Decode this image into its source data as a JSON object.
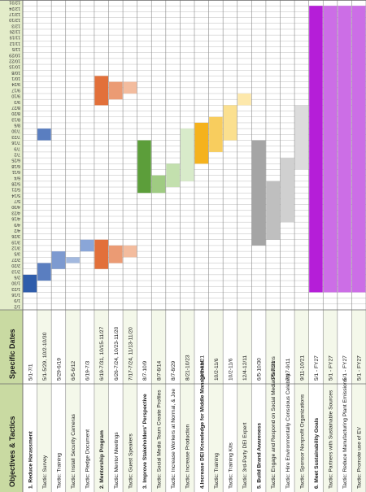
{
  "chart_data": {
    "type": "gantt",
    "orientation": "rotated-90-ccw",
    "headers": {
      "col1": "Objectives & Tactics",
      "col2": "Specific Dates"
    },
    "timeline_labels": [
      "1/2",
      "1/9",
      "1/16",
      "1/23",
      "1/30",
      "2/6",
      "2/13",
      "2/20",
      "2/27",
      "3/5",
      "3/12",
      "3/19",
      "3/26",
      "4/2",
      "4/9",
      "4/16",
      "4/23",
      "4/30",
      "5/7",
      "5/14",
      "5/21",
      "5/28",
      "6/4",
      "6/11",
      "6/18",
      "6/25",
      "7/2",
      "7/9",
      "7/16",
      "7/23",
      "7/30",
      "8/6",
      "8/13",
      "8/20",
      "8/27",
      "9/3",
      "9/10",
      "9/17",
      "9/24",
      "10/1",
      "10/8",
      "10/15",
      "10/22",
      "10/29",
      "11/5",
      "11/12",
      "11/19",
      "11/26",
      "12/3",
      "12/10",
      "12/17",
      "12/24",
      "12/31"
    ],
    "rows": [
      {
        "name": "1. Reduce Harassment",
        "dates": "5/1-7/1",
        "bold": true,
        "color": "#2f5dab",
        "bars": [
          {
            "start": 3,
            "end": 6
          }
        ]
      },
      {
        "name": "Tactic: Survey",
        "dates": "5/1-5/29, 10/2-10/30",
        "bold": false,
        "color": "#5a7ec0",
        "bars": [
          {
            "start": 5,
            "end": 8
          },
          {
            "start": 29,
            "end": 31
          }
        ]
      },
      {
        "name": "Tactic: Training",
        "dates": "5/29-6/19",
        "bold": false,
        "color": "#7d9ad0",
        "bars": [
          {
            "start": 7,
            "end": 10
          }
        ]
      },
      {
        "name": "Tactic: Install Security Cameras",
        "dates": "6/5-6/12",
        "bold": false,
        "color": "#a3b9df",
        "bars": [
          {
            "start": 8,
            "end": 9
          }
        ]
      },
      {
        "name": "Tactic: Pledge Document",
        "dates": "6/19-7/3",
        "bold": false,
        "color": "#8aa6d8",
        "bars": [
          {
            "start": 10,
            "end": 12
          }
        ]
      },
      {
        "name": "2. Mentorship Program",
        "dates": "6/19-7/31, 10/15-11/27",
        "bold": true,
        "color": "#e2703a",
        "bars": [
          {
            "start": 7,
            "end": 12
          },
          {
            "start": 35,
            "end": 40
          }
        ]
      },
      {
        "name": "Tactic: Mentor Meetings",
        "dates": "6/26-7/24, 10/23-11/20",
        "bold": false,
        "color": "#eb9b74",
        "bars": [
          {
            "start": 8,
            "end": 11
          },
          {
            "start": 36,
            "end": 39
          }
        ]
      },
      {
        "name": "Tactic: Guest Speakers",
        "dates": "7/17-7/24, 11/13-11/20",
        "bold": false,
        "color": "#f3bc9e",
        "bars": [
          {
            "start": 9,
            "end": 11
          },
          {
            "start": 37,
            "end": 39
          }
        ]
      },
      {
        "name": "3. Improve Stakeholders' Perspective",
        "dates": "8/7-10/9",
        "bold": true,
        "color": "#5c9e3a",
        "bars": [
          {
            "start": 20,
            "end": 29
          }
        ]
      },
      {
        "name": "Tactic: Social Media Team Create Profiles",
        "dates": "8/7-8/14",
        "bold": false,
        "color": "#9fcb82",
        "bars": [
          {
            "start": 20,
            "end": 23
          }
        ]
      },
      {
        "name": "Tactic: Increase Workers at Normal, & Joe",
        "dates": "8/7-8/29",
        "bold": false,
        "color": "#c3e0ae",
        "bars": [
          {
            "start": 21,
            "end": 25
          }
        ]
      },
      {
        "name": "Tactic: Increase Production",
        "dates": "8/21-10/23",
        "bold": false,
        "color": "#d8ebca",
        "bars": [
          {
            "start": 22,
            "end": 31
          }
        ]
      },
      {
        "name": "4.Increase DEI Knowledge for Middle Management",
        "dates": "10/2-11/21",
        "bold": true,
        "color": "#f5b21c",
        "bars": [
          {
            "start": 25,
            "end": 32
          }
        ]
      },
      {
        "name": "Tactic: Training",
        "dates": "10/2-11/6",
        "bold": false,
        "color": "#f8cd5e",
        "bars": [
          {
            "start": 27,
            "end": 33
          }
        ]
      },
      {
        "name": "Tactic: Training Kits",
        "dates": "10/2-11/6",
        "bold": false,
        "color": "#fbe08f",
        "bars": [
          {
            "start": 29,
            "end": 35
          }
        ]
      },
      {
        "name": "Tactic: 3rd-Party DEI Expert",
        "dates": "12/4-12/11",
        "bold": false,
        "color": "#fde8ab",
        "bars": [
          {
            "start": 35,
            "end": 37
          }
        ]
      },
      {
        "name": "5. Build Brand Awareness",
        "dates": "6/5-10/30",
        "bold": true,
        "color": "#a5a5a5",
        "bars": [
          {
            "start": 11,
            "end": 29
          }
        ]
      },
      {
        "name": "Tactic: Engage and Respond on Social Media Platforms",
        "dates": "6/5-7/31",
        "bold": false,
        "color": "#bfbfbf",
        "bars": [
          {
            "start": 12,
            "end": 22
          }
        ]
      },
      {
        "name": "Tactic: Hire Environmentally Conscious Celebrity",
        "dates": "7/17-9/11",
        "bold": false,
        "color": "#d0d0d0",
        "bars": [
          {
            "start": 15,
            "end": 26
          }
        ]
      },
      {
        "name": "Tactic: Sponsor Nonprofit Organizations",
        "dates": "9/11-10/21",
        "bold": false,
        "color": "#dcdcdc",
        "bars": [
          {
            "start": 24,
            "end": 35
          }
        ]
      },
      {
        "name": "6. Meet Sustainability Goals",
        "dates": "5/1 - FY27",
        "bold": true,
        "color": "#b51ed8",
        "bars": [
          {
            "start": 3,
            "end": 52
          }
        ]
      },
      {
        "name": "Tactic: Partners with Sustainable Sources",
        "dates": "5/1 - FY27",
        "bold": false,
        "color": "#cc6ee6",
        "bars": [
          {
            "start": 3,
            "end": 52
          }
        ]
      },
      {
        "name": "Tactic: Reduce Manufacturing Plant Emissions",
        "dates": "5/1 - FY27",
        "bold": false,
        "color": "#cc6ee6",
        "bars": [
          {
            "start": 3,
            "end": 52
          }
        ]
      },
      {
        "name": "Tactic: Promote use of EV",
        "dates": "5/1 - FY27",
        "bold": false,
        "color": "#cc6ee6",
        "bars": [
          {
            "start": 3,
            "end": 52
          }
        ]
      }
    ]
  }
}
